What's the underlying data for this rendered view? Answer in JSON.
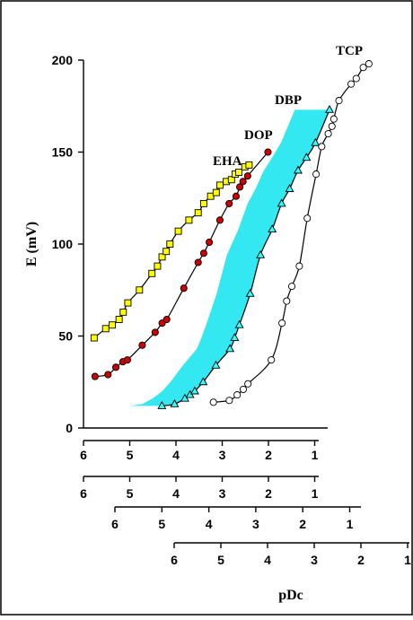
{
  "chart_data": {
    "type": "scatter",
    "ylabel": "E (mV)",
    "xlabel": "pDc",
    "ylim": [
      0,
      200
    ],
    "yticks": [
      0,
      50,
      100,
      150,
      200
    ],
    "xticks_text": [
      "6",
      "5",
      "4",
      "3",
      "2",
      "1"
    ],
    "colors": {
      "EHA": "#ffff00",
      "DOP": "#cc0000",
      "DBP": "#33ffff",
      "TCP": "#ffffff",
      "band": "#33e8f0"
    },
    "series": [
      {
        "name": "EHA",
        "marker": "square",
        "axis": 0,
        "x": [
          5.77,
          5.52,
          5.38,
          5.23,
          5.14,
          5.04,
          4.79,
          4.52,
          4.4,
          4.3,
          4.21,
          4.13,
          3.95,
          3.72,
          3.52,
          3.4,
          3.25,
          3.13,
          3.05,
          2.91,
          2.8,
          2.72,
          2.64,
          2.51,
          2.42
        ],
        "y": [
          49,
          54,
          56,
          59,
          63,
          68,
          75,
          84,
          88,
          93,
          96,
          100,
          107,
          113,
          117,
          122,
          126,
          128,
          132,
          134,
          135,
          138,
          139,
          142,
          143
        ]
      },
      {
        "name": "DOP",
        "marker": "circle",
        "axis": 1,
        "x": [
          5.75,
          5.47,
          5.3,
          5.15,
          5.05,
          4.73,
          4.45,
          4.3,
          4.2,
          3.83,
          3.52,
          3.4,
          3.28,
          3.05,
          2.85,
          2.7,
          2.62,
          2.55,
          2.45,
          2.01
        ],
        "y": [
          28,
          29,
          33,
          36,
          37,
          45,
          52,
          57,
          59,
          76,
          90,
          95,
          101,
          113,
          122,
          126,
          131,
          134,
          137,
          150
        ]
      },
      {
        "name": "DBP",
        "marker": "triangle",
        "axis": 2,
        "x": [
          5.0,
          4.73,
          4.51,
          4.4,
          4.3,
          4.12,
          3.85,
          3.55,
          3.45,
          3.35,
          3.12,
          2.9,
          2.65,
          2.45,
          2.28,
          2.1,
          1.92,
          1.73,
          1.43
        ],
        "y": [
          12,
          13,
          16,
          18,
          20,
          25,
          34,
          43,
          49,
          56,
          73,
          94,
          108,
          122,
          130,
          140,
          147,
          155,
          173
        ]
      },
      {
        "name": "TCP",
        "marker": "circle-open",
        "axis": 3,
        "x": [
          5.16,
          4.82,
          4.65,
          4.52,
          4.42,
          3.92,
          3.69,
          3.59,
          3.48,
          3.32,
          3.15,
          2.96,
          2.84,
          2.7,
          2.62,
          2.58,
          2.47,
          2.21,
          2.1,
          1.95,
          1.83
        ],
        "y": [
          14,
          15,
          18,
          21,
          24,
          37,
          57,
          69,
          77,
          88,
          114,
          138,
          153,
          160,
          164,
          168,
          178,
          187,
          190,
          196,
          198
        ]
      }
    ]
  }
}
